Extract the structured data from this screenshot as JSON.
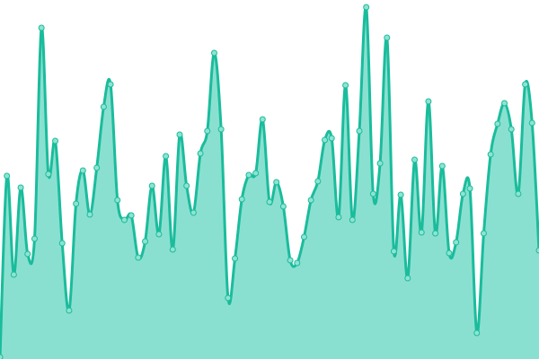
{
  "chart_data": {
    "type": "area",
    "title": "",
    "xlabel": "",
    "ylabel": "",
    "ylim": [
      0,
      400
    ],
    "grid": false,
    "legend": "none",
    "smooth": true,
    "markers": true,
    "colors": {
      "line": "#1abc9c",
      "fill": "#8ae0d0",
      "marker_fill": "#8fe3d1",
      "marker_stroke": "#1abc9c"
    },
    "series": [
      {
        "values": [
          2,
          204,
          94,
          191,
          117,
          134,
          369,
          206,
          243,
          129,
          54,
          173,
          210,
          161,
          213,
          281,
          306,
          177,
          155,
          160,
          113,
          131,
          193,
          139,
          226,
          122,
          250,
          193,
          163,
          229,
          254,
          341,
          256,
          68,
          112,
          178,
          205,
          207,
          267,
          175,
          197,
          170,
          110,
          107,
          136,
          177,
          198,
          244,
          246,
          158,
          305,
          155,
          254,
          392,
          184,
          218,
          358,
          120,
          183,
          90,
          222,
          141,
          287,
          140,
          215,
          118,
          130,
          184,
          190,
          29,
          140,
          228,
          262,
          285,
          256,
          184,
          306,
          263,
          121
        ]
      }
    ]
  }
}
